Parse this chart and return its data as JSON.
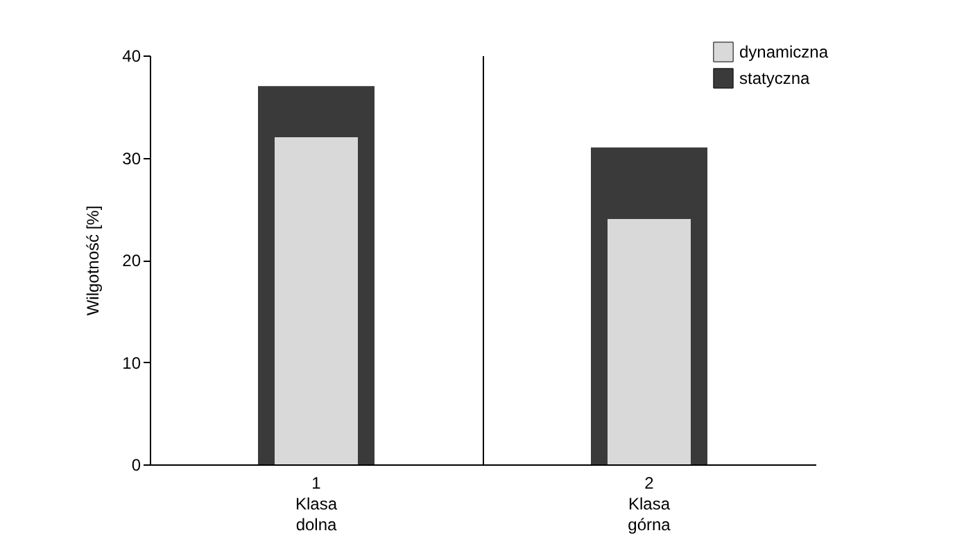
{
  "chart_data": {
    "type": "bar",
    "ylabel": "Wilgotność [%]",
    "categories": [
      "1\n\nKlasa\ndolna",
      "2\n\nKlasa\ngórna"
    ],
    "series": [
      {
        "name": "dynamiczna",
        "color": "#d9d9d9",
        "values": [
          32,
          24
        ]
      },
      {
        "name": "statyczna",
        "color": "#3a3a3a",
        "values": [
          37,
          31
        ]
      }
    ],
    "ylim": [
      0,
      40
    ],
    "yticks": [
      0,
      10,
      20,
      30,
      40
    ],
    "grid": "x",
    "legend": "top right"
  }
}
